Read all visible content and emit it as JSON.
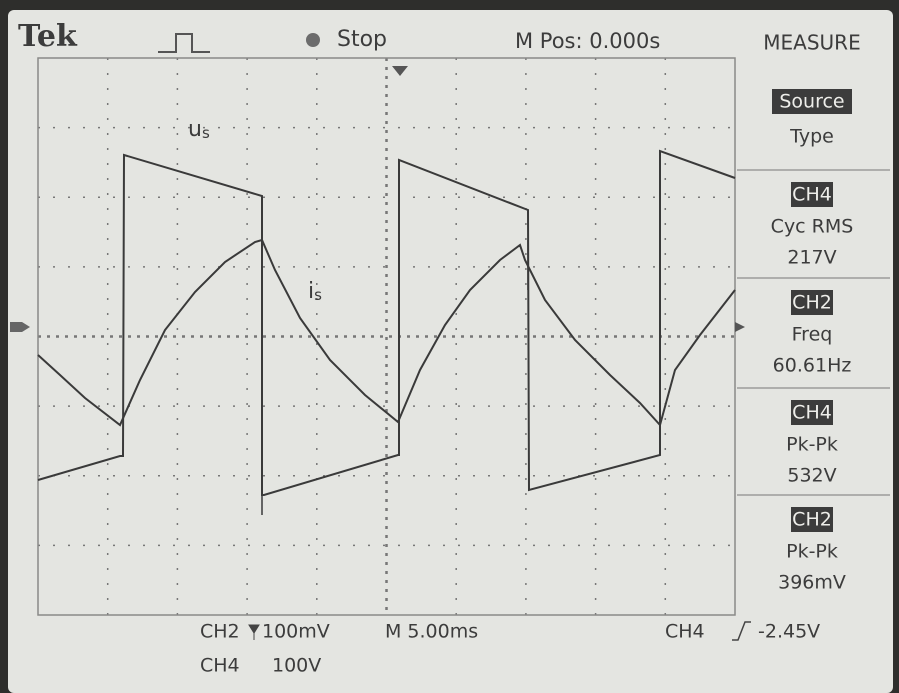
{
  "header": {
    "brand": "Tek",
    "status": "Stop",
    "position": "M Pos: 0.000s",
    "menu_title": "MEASURE"
  },
  "trace_labels": [
    {
      "main": "u",
      "sub": "s"
    },
    {
      "main": "i",
      "sub": "s"
    }
  ],
  "menu": {
    "source": {
      "highlight": "Source",
      "label": "Type"
    },
    "measurements": [
      {
        "channel": "CH4",
        "name": "Cyc RMS",
        "value": "217V"
      },
      {
        "channel": "CH2",
        "name": "Freq",
        "value": "60.61Hz"
      },
      {
        "channel": "CH4",
        "name": "Pk-Pk",
        "value": "532V"
      },
      {
        "channel": "CH2",
        "name": "Pk-Pk",
        "value": "396mV"
      }
    ]
  },
  "footer": {
    "ch2_label": "CH2",
    "ch2_scale": "100mV",
    "timebase": "M 5.00ms",
    "trigger_channel": "CH4",
    "trigger_level": "-2.45V",
    "ch4_label": "CH4",
    "ch4_scale": "100V"
  }
}
